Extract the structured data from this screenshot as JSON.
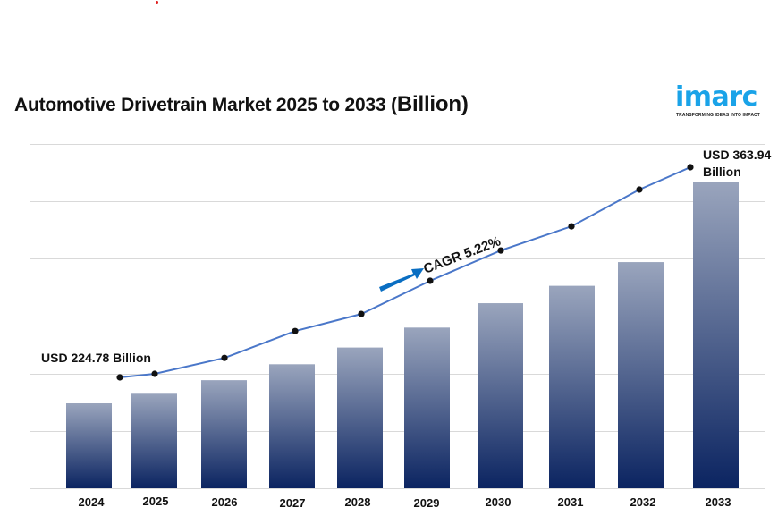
{
  "brand": {
    "logo_text": "imarc",
    "tagline": "TRANSFORMING IDEAS INTO IMPACT",
    "color": "#1aa3e8"
  },
  "title": {
    "main": "Automotive Drivetrain Market 2025 to 2033 (",
    "unit": "Billion",
    "close": ")"
  },
  "chart_data": {
    "type": "bar",
    "title": "Automotive Drivetrain Market 2025 to 2033 (Billion)",
    "xlabel": "",
    "ylabel": "",
    "categories": [
      "2024",
      "2025",
      "2026",
      "2027",
      "2028",
      "2029",
      "2030",
      "2031",
      "2032",
      "2033"
    ],
    "series": [
      {
        "name": "Market size (USD Billion)",
        "values": [
          224.78,
          230.8,
          239.3,
          249.3,
          259.8,
          272.3,
          287.6,
          298.5,
          313.4,
          363.94
        ]
      },
      {
        "name": "Trend line",
        "values": [
          224.78,
          226.4,
          233.6,
          245.7,
          253.4,
          268.4,
          282.1,
          293.0,
          309.6,
          319.7
        ]
      }
    ],
    "annotations": {
      "start_label": "USD 224.78 Billion",
      "end_label_line1": "USD 363.94",
      "end_label_line2": "Billion",
      "cagr_label": "CAGR 5.22%"
    },
    "grid": true,
    "colors": {
      "bar_top": "#9aa5bd",
      "bar_bottom": "#0b2461",
      "line": "#4a77c9",
      "marker": "#111111",
      "arrow": "#0a6ec2",
      "grid": "#d9d9d9"
    }
  }
}
